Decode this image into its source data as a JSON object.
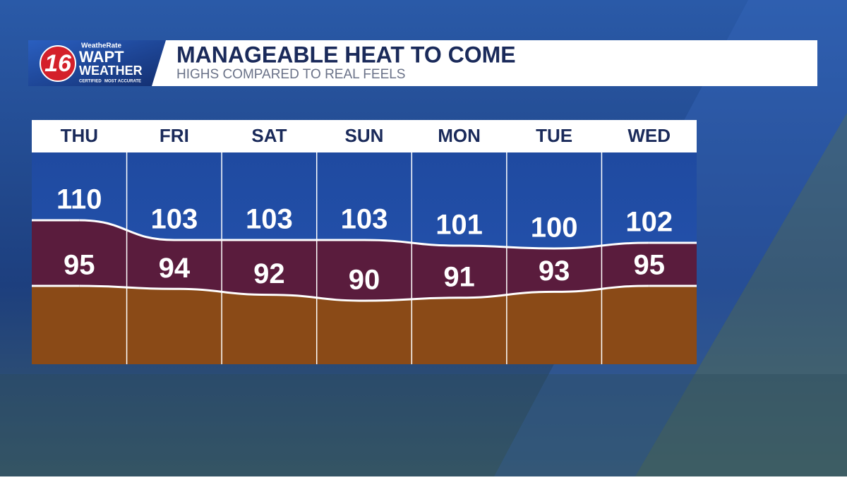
{
  "branding": {
    "rating": "WeatheRate",
    "channel": "16",
    "station": "WAPT",
    "brand": "WEATHER",
    "badge_left": "CERTIFIED",
    "badge_right": "MOST ACCURATE"
  },
  "chart_data": {
    "type": "area",
    "title": "MANAGEABLE HEAT TO COME",
    "subtitle": "HIGHS COMPARED TO REAL FEELS",
    "categories": [
      "THU",
      "FRI",
      "SAT",
      "SUN",
      "MON",
      "TUE",
      "WED"
    ],
    "series": [
      {
        "color": "#5a1c3d",
        "values": [
          110,
          103,
          103,
          103,
          101,
          100,
          102
        ]
      },
      {
        "color": "#8a4a17",
        "values": [
          95,
          94,
          92,
          90,
          91,
          93,
          95
        ]
      }
    ]
  }
}
